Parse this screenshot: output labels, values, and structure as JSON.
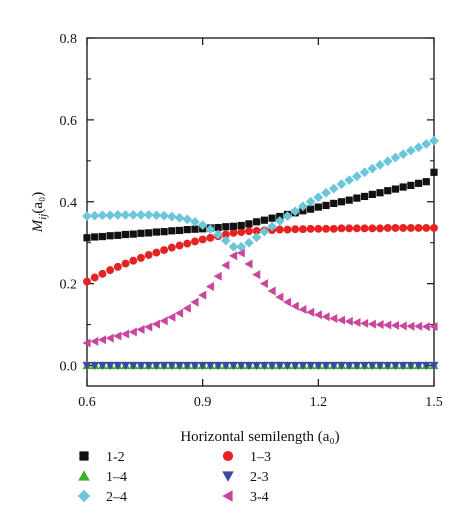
{
  "chart_data": {
    "type": "scatter",
    "title": "",
    "xlabel": "Horizontal semilength (a₀)",
    "ylabel_main": "M",
    "ylabel_sub": "ij",
    "ylabel_rest": "(a₀)",
    "xlim": [
      0.6,
      1.5
    ],
    "ylim": [
      -0.05,
      0.8
    ],
    "xticks": [
      0.6,
      0.9,
      1.2,
      1.5
    ],
    "xtick_labels": [
      "0.6",
      "0.9",
      "1.2",
      "1.5"
    ],
    "yticks": [
      0.0,
      0.2,
      0.4,
      0.6,
      0.8
    ],
    "ytick_labels": [
      "0.0",
      "0.2",
      "0.4",
      "0.6",
      "0.8"
    ],
    "grid": false,
    "legend_placement": "below",
    "x": [
      0.6,
      0.62,
      0.64,
      0.66,
      0.68,
      0.7,
      0.72,
      0.74,
      0.76,
      0.78,
      0.8,
      0.82,
      0.84,
      0.86,
      0.88,
      0.9,
      0.92,
      0.94,
      0.96,
      0.98,
      1.0,
      1.02,
      1.04,
      1.06,
      1.08,
      1.1,
      1.12,
      1.14,
      1.16,
      1.18,
      1.2,
      1.22,
      1.24,
      1.26,
      1.28,
      1.3,
      1.32,
      1.34,
      1.36,
      1.38,
      1.4,
      1.42,
      1.44,
      1.46,
      1.48,
      1.5
    ],
    "series": [
      {
        "name": "1-2",
        "marker": "square",
        "color": "#111111",
        "values": [
          0.312,
          0.314,
          0.315,
          0.317,
          0.318,
          0.32,
          0.321,
          0.323,
          0.324,
          0.326,
          0.327,
          0.329,
          0.33,
          0.332,
          0.333,
          0.334,
          0.336,
          0.337,
          0.339,
          0.34,
          0.342,
          0.346,
          0.351,
          0.355,
          0.36,
          0.364,
          0.369,
          0.373,
          0.378,
          0.382,
          0.387,
          0.391,
          0.396,
          0.4,
          0.404,
          0.409,
          0.413,
          0.418,
          0.422,
          0.427,
          0.431,
          0.436,
          0.44,
          0.445,
          0.449,
          0.472
        ]
      },
      {
        "name": "1–3",
        "marker": "circle",
        "color": "#e52421",
        "values": [
          0.205,
          0.215,
          0.224,
          0.233,
          0.241,
          0.249,
          0.256,
          0.263,
          0.27,
          0.276,
          0.282,
          0.288,
          0.293,
          0.298,
          0.303,
          0.308,
          0.312,
          0.316,
          0.32,
          0.324,
          0.326,
          0.328,
          0.329,
          0.33,
          0.331,
          0.332,
          0.332,
          0.333,
          0.333,
          0.334,
          0.334,
          0.334,
          0.334,
          0.335,
          0.335,
          0.335,
          0.335,
          0.335,
          0.335,
          0.336,
          0.336,
          0.336,
          0.336,
          0.336,
          0.336,
          0.336
        ]
      },
      {
        "name": "1–4",
        "marker": "triangle-up",
        "color": "#3fae2a",
        "values": [
          0.0,
          0.0,
          0.0,
          0.0,
          0.0,
          0.0,
          0.0,
          0.0,
          0.0,
          0.0,
          0.0,
          0.0,
          0.0,
          0.0,
          0.0,
          0.0,
          0.0,
          0.0,
          0.0,
          0.0,
          0.0,
          0.0,
          0.0,
          0.0,
          0.0,
          0.0,
          0.0,
          0.0,
          0.0,
          0.0,
          0.0,
          0.0,
          0.0,
          0.0,
          0.0,
          0.0,
          0.0,
          0.0,
          0.0,
          0.0,
          0.0,
          0.0,
          0.0,
          0.0,
          0.0,
          0.0
        ]
      },
      {
        "name": "2-3",
        "marker": "triangle-down",
        "color": "#3a4a9f",
        "values": [
          0.0,
          0.0,
          0.0,
          0.0,
          0.0,
          0.0,
          0.0,
          0.0,
          0.0,
          0.0,
          0.0,
          0.0,
          0.0,
          0.0,
          0.0,
          0.0,
          0.0,
          0.0,
          0.0,
          0.0,
          0.0,
          0.0,
          0.0,
          0.0,
          0.0,
          0.0,
          0.0,
          0.0,
          0.0,
          0.0,
          0.0,
          0.0,
          0.0,
          0.0,
          0.0,
          0.0,
          0.0,
          0.0,
          0.0,
          0.0,
          0.0,
          0.0,
          0.0,
          0.0,
          0.0,
          0.0
        ]
      },
      {
        "name": "2–4",
        "marker": "diamond",
        "color": "#6cc6da",
        "values": [
          0.365,
          0.366,
          0.367,
          0.367,
          0.368,
          0.368,
          0.368,
          0.368,
          0.368,
          0.367,
          0.366,
          0.364,
          0.361,
          0.357,
          0.351,
          0.343,
          0.333,
          0.32,
          0.305,
          0.29,
          0.29,
          0.3,
          0.313,
          0.327,
          0.34,
          0.353,
          0.365,
          0.377,
          0.389,
          0.4,
          0.411,
          0.422,
          0.432,
          0.443,
          0.453,
          0.462,
          0.472,
          0.481,
          0.49,
          0.499,
          0.508,
          0.516,
          0.525,
          0.533,
          0.541,
          0.549
        ]
      },
      {
        "name": "3-4",
        "marker": "triangle-left",
        "color": "#c9469c",
        "values": [
          0.055,
          0.059,
          0.063,
          0.067,
          0.072,
          0.077,
          0.082,
          0.088,
          0.094,
          0.101,
          0.109,
          0.118,
          0.128,
          0.14,
          0.155,
          0.172,
          0.193,
          0.218,
          0.245,
          0.268,
          0.275,
          0.248,
          0.222,
          0.2,
          0.182,
          0.167,
          0.155,
          0.145,
          0.137,
          0.13,
          0.124,
          0.119,
          0.115,
          0.111,
          0.108,
          0.105,
          0.103,
          0.101,
          0.1,
          0.099,
          0.098,
          0.097,
          0.096,
          0.096,
          0.095,
          0.095
        ]
      }
    ],
    "legend": [
      {
        "series": 0,
        "col": 0,
        "row": 0
      },
      {
        "series": 1,
        "col": 1,
        "row": 0
      },
      {
        "series": 2,
        "col": 0,
        "row": 1
      },
      {
        "series": 3,
        "col": 1,
        "row": 1
      },
      {
        "series": 4,
        "col": 0,
        "row": 2
      },
      {
        "series": 5,
        "col": 1,
        "row": 2
      }
    ]
  }
}
